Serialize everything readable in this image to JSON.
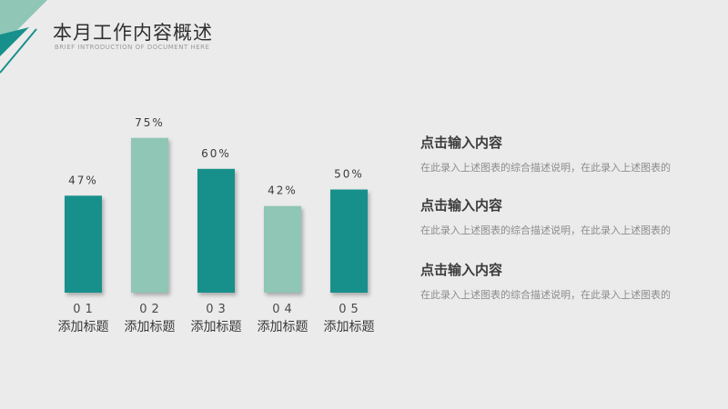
{
  "header": {
    "title": "本月工作内容概述",
    "subtitle": "BRIEF INTRODUCTION OF DOCUMENT HERE"
  },
  "colors": {
    "dark_teal": "#17908b",
    "light_teal": "#8fc6b5",
    "corner_light": "#8fc6b5",
    "corner_dark": "#17908b"
  },
  "chart_data": {
    "type": "bar",
    "values": [
      47,
      75,
      60,
      42,
      50
    ],
    "value_labels": [
      "47%",
      "75%",
      "60%",
      "42%",
      "50%"
    ],
    "numbers": [
      "01",
      "02",
      "03",
      "04",
      "05"
    ],
    "categories": [
      "添加标题",
      "添加标题",
      "添加标题",
      "添加标题",
      "添加标题"
    ],
    "bar_colors": [
      "#17908b",
      "#8fc6b5",
      "#17908b",
      "#8fc6b5",
      "#17908b"
    ],
    "ylim": [
      0,
      100
    ],
    "grid": false
  },
  "text_blocks": [
    {
      "heading": "点击输入内容",
      "desc": "在此录入上述图表的综合描述说明，在此录入上述图表的"
    },
    {
      "heading": "点击输入内容",
      "desc": "在此录入上述图表的综合描述说明，在此录入上述图表的"
    },
    {
      "heading": "点击输入内容",
      "desc": "在此录入上述图表的综合描述说明，在此录入上述图表的"
    }
  ]
}
